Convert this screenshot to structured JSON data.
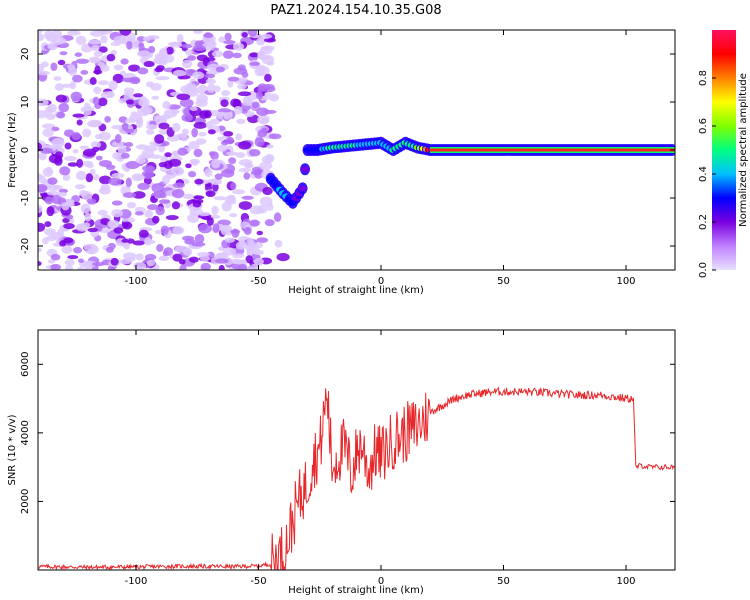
{
  "title": "PAZ1.2024.154.10.35.G08",
  "colors": {
    "snr_line": "#e8272b",
    "noise": "#7a00e0",
    "colorbar_stops": [
      "#e8e0ff",
      "#c080ff",
      "#7a00e0",
      "#0000ff",
      "#00c0ff",
      "#00ff80",
      "#80ff00",
      "#ffff00",
      "#ff8000",
      "#ff0000",
      "#ff1060"
    ]
  },
  "chart_data": [
    {
      "type": "heatmap",
      "title": "",
      "xlabel": "Height of straight line (km)",
      "ylabel": "Frequency (Hz)",
      "xlim": [
        -140,
        120
      ],
      "ylim": [
        -25,
        25
      ],
      "xticks": [
        -100,
        -50,
        0,
        50,
        100
      ],
      "yticks": [
        -20,
        -10,
        0,
        10,
        20
      ],
      "noise_region_x": [
        -140,
        -45
      ],
      "signal_trace": {
        "x": [
          -45,
          -40,
          -36,
          -32,
          -30,
          -26,
          -20,
          -10,
          0,
          5,
          10,
          15,
          20,
          50,
          85,
          120
        ],
        "freq": [
          -6,
          -9,
          -11,
          -8,
          0,
          0,
          0.5,
          1,
          1.5,
          0,
          1.5,
          0.5,
          0,
          0,
          0,
          0
        ],
        "amplitude": [
          0.3,
          0.45,
          0.3,
          0.25,
          0.3,
          0.35,
          0.55,
          0.5,
          0.45,
          0.5,
          0.55,
          0.6,
          0.9,
          1.0,
          0.95,
          1.0
        ]
      },
      "colorbar": {
        "label": "Normalized spectral amplitude",
        "range": [
          0,
          1
        ],
        "ticks": [
          "0.0",
          "0.2",
          "0.4",
          "0.6",
          "0.8"
        ]
      }
    },
    {
      "type": "line",
      "title": "",
      "xlabel": "Height of straight line (km)",
      "ylabel": "SNR (10 * v/v)",
      "xlim": [
        -140,
        120
      ],
      "ylim": [
        0,
        7000
      ],
      "xticks": [
        -100,
        -50,
        0,
        50,
        100
      ],
      "yticks": [
        2000,
        4000,
        6000
      ],
      "series": [
        {
          "x": [
            -140,
            -120,
            -100,
            -80,
            -60,
            -50,
            -45,
            -40,
            -38,
            -35,
            -32,
            -30,
            -28,
            -25,
            -22,
            -20,
            -18,
            -15,
            -12,
            -10,
            -8,
            -5,
            -2,
            0,
            5,
            10,
            15,
            20,
            25,
            30,
            35,
            40,
            45,
            50,
            60,
            70,
            80,
            90,
            95,
            100,
            103,
            104,
            106,
            110,
            120
          ],
          "y": [
            100,
            80,
            90,
            110,
            100,
            120,
            180,
            500,
            900,
            1700,
            2300,
            2500,
            3200,
            3500,
            5200,
            3000,
            3300,
            3600,
            2800,
            3400,
            3700,
            2900,
            3500,
            3300,
            3800,
            4000,
            4200,
            4600,
            4800,
            5000,
            5100,
            5150,
            5200,
            5200,
            5200,
            5150,
            5100,
            5100,
            5050,
            5000,
            5000,
            3000,
            3050,
            3000,
            3000
          ]
        }
      ]
    }
  ]
}
